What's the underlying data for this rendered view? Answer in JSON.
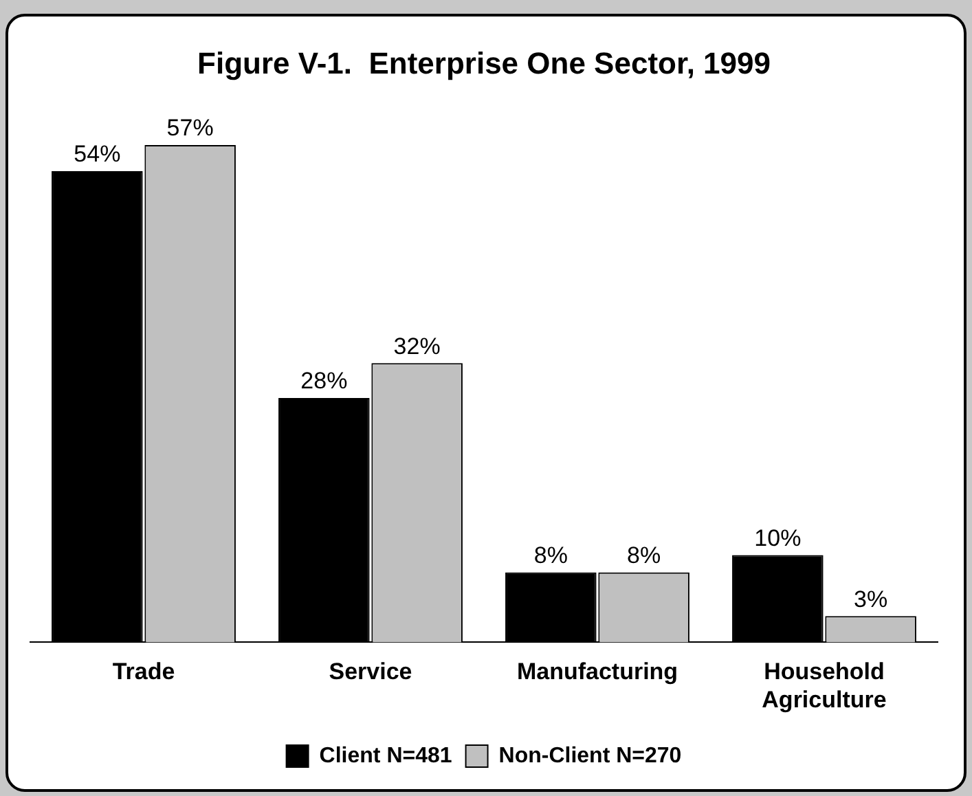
{
  "chart_data": {
    "type": "bar",
    "title": "Figure V-1.  Enterprise One Sector, 1999",
    "categories": [
      "Trade",
      "Service",
      "Manufacturing",
      "Household Agriculture"
    ],
    "series": [
      {
        "name": "Client N=481",
        "color": "#000000",
        "values": [
          54,
          28,
          8,
          10
        ],
        "value_labels": [
          "54%",
          "28%",
          "8%",
          "10%"
        ]
      },
      {
        "name": "Non-Client N=270",
        "color": "#c0c0c0",
        "values": [
          57,
          32,
          8,
          3
        ],
        "value_labels": [
          "57%",
          "32%",
          "8%",
          "3%"
        ]
      }
    ],
    "legend": "bottom",
    "grid": false
  }
}
